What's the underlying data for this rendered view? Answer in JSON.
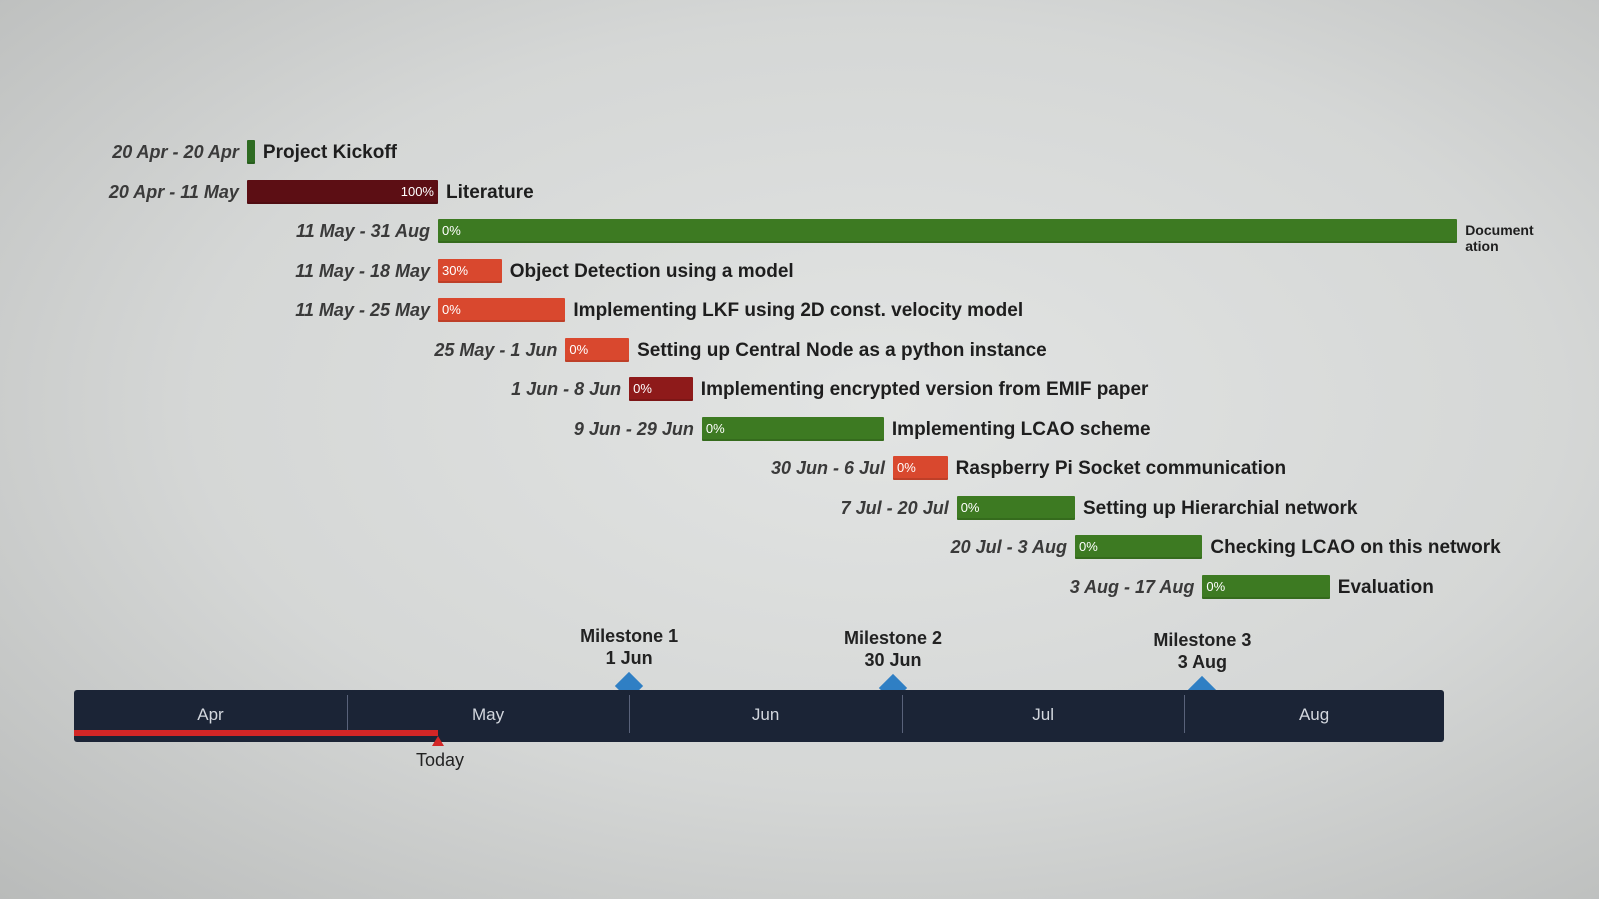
{
  "chart_data": {
    "type": "gantt",
    "tasks": [
      {
        "range": "20 Apr - 20 Apr",
        "name": "Project Kickoff",
        "start": "04-20",
        "end": "04-20",
        "percent_label": "",
        "percent": 0,
        "color": "#2e6b22"
      },
      {
        "range": "20 Apr - 11 May",
        "name": "Literature",
        "start": "04-20",
        "end": "05-11",
        "percent_label": "100%",
        "percent": 100,
        "color": "#5c0e14"
      },
      {
        "range": "11 May - 31 Aug",
        "name": "Document ation",
        "start": "05-11",
        "end": "08-31",
        "percent_label": "0%",
        "percent": 0,
        "color": "#3d7a22"
      },
      {
        "range": "11 May - 18 May",
        "name": "Object Detection using a model",
        "start": "05-11",
        "end": "05-18",
        "percent_label": "30%",
        "percent": 30,
        "color": "#d9482e"
      },
      {
        "range": "11 May - 25 May",
        "name": "Implementing LKF using 2D const. velocity model",
        "start": "05-11",
        "end": "05-25",
        "percent_label": "0%",
        "percent": 0,
        "color": "#d9482e"
      },
      {
        "range": "25 May - 1 Jun",
        "name": "Setting up Central Node as a python instance",
        "start": "05-25",
        "end": "06-01",
        "percent_label": "0%",
        "percent": 0,
        "color": "#d9482e"
      },
      {
        "range": "1 Jun - 8 Jun",
        "name": "Implementing encrypted version from EMIF paper",
        "start": "06-01",
        "end": "06-08",
        "percent_label": "0%",
        "percent": 0,
        "color": "#8e1a1a"
      },
      {
        "range": "9 Jun - 29 Jun",
        "name": "Implementing LCAO scheme",
        "start": "06-09",
        "end": "06-29",
        "percent_label": "0%",
        "percent": 0,
        "color": "#3d7a22"
      },
      {
        "range": "30 Jun - 6 Jul",
        "name": "Raspberry Pi Socket communication",
        "start": "06-30",
        "end": "07-06",
        "percent_label": "0%",
        "percent": 0,
        "color": "#d9482e"
      },
      {
        "range": "7 Jul - 20 Jul",
        "name": "Setting up Hierarchial network",
        "start": "07-07",
        "end": "07-20",
        "percent_label": "0%",
        "percent": 0,
        "color": "#3d7a22"
      },
      {
        "range": "20 Jul - 3 Aug",
        "name": "Checking LCAO on this network",
        "start": "07-20",
        "end": "08-03",
        "percent_label": "0%",
        "percent": 0,
        "color": "#3d7a22"
      },
      {
        "range": "3 Aug - 17 Aug",
        "name": "Evaluation",
        "start": "08-03",
        "end": "08-17",
        "percent_label": "0%",
        "percent": 0,
        "color": "#3d7a22"
      }
    ],
    "milestones": [
      {
        "name": "Milestone 1",
        "date_label": "1 Jun",
        "date": "06-01",
        "color": "#2f7fc4"
      },
      {
        "name": "Milestone 2",
        "date_label": "30 Jun",
        "date": "06-30",
        "color": "#2f7fc4"
      },
      {
        "name": "Milestone 3",
        "date_label": "3 Aug",
        "date": "08-03",
        "color": "#2f7fc4"
      }
    ],
    "months": [
      "Apr",
      "May",
      "Jun",
      "Jul",
      "Aug"
    ],
    "today": {
      "label": "Today",
      "date": "05-11",
      "color": "#d32626"
    },
    "timeline_color": "#1b2436"
  }
}
